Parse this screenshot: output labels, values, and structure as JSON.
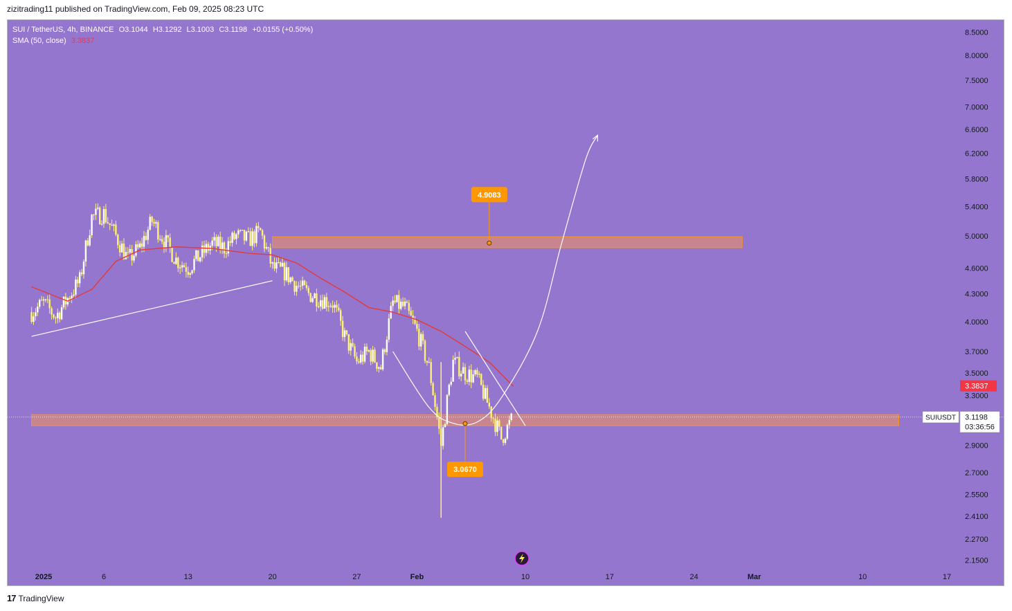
{
  "publish_info": "zizitrading11 published on TradingView.com, Feb 09, 2025 08:23 UTC",
  "legend": {
    "symbol": "SUI / TetherUS, 4h, BINANCE",
    "open": "O3.1044",
    "high": "H3.1292",
    "low": "L3.1003",
    "close": "C3.1198",
    "change": "+0.0155 (+0.50%)",
    "sma_label": "SMA (50, close)",
    "sma_value": "3.3837"
  },
  "footer": {
    "brand": "TradingView",
    "logo_mark": "17"
  },
  "colors": {
    "background": "#9576cf",
    "candle": "#fff176",
    "candle_highlight": "#ffffff",
    "sma": "#e53935",
    "zone_fill": "#d98a7a",
    "zone_border": "#ff9800",
    "callout": "#ff9800",
    "price_label_bg": "#f23645"
  },
  "chart_data": {
    "type": "candlestick",
    "scale": "log",
    "y_ticks": [
      "8.5000",
      "8.0000",
      "7.5000",
      "7.0000",
      "6.6000",
      "6.2000",
      "5.8000",
      "5.4000",
      "5.0000",
      "4.6000",
      "4.3000",
      "4.0000",
      "3.7000",
      "3.5000",
      "3.3000",
      "2.9000",
      "2.7000",
      "2.5500",
      "2.4100",
      "2.2700",
      "2.1500"
    ],
    "x_ticks": [
      {
        "label": "2025",
        "date": "2025-01-01",
        "bold": true
      },
      {
        "label": "6",
        "date": "2025-01-06"
      },
      {
        "label": "13",
        "date": "2025-01-13"
      },
      {
        "label": "20",
        "date": "2025-01-20"
      },
      {
        "label": "27",
        "date": "2025-01-27"
      },
      {
        "label": "Feb",
        "date": "2025-02-01",
        "bold": true
      },
      {
        "label": "10",
        "date": "2025-02-10"
      },
      {
        "label": "17",
        "date": "2025-02-17"
      },
      {
        "label": "24",
        "date": "2025-02-24"
      },
      {
        "label": "Mar",
        "date": "2025-03-01",
        "bold": true
      },
      {
        "label": "10",
        "date": "2025-03-10"
      },
      {
        "label": "17",
        "date": "2025-03-17"
      }
    ],
    "price_path": [
      [
        "2024-12-31",
        4.1
      ],
      [
        "2025-01-01",
        4.2
      ],
      [
        "2025-01-02",
        4.05
      ],
      [
        "2025-01-03",
        4.25
      ],
      [
        "2025-01-04",
        4.45
      ],
      [
        "2025-01-05",
        5.25
      ],
      [
        "2025-01-06",
        5.3
      ],
      [
        "2025-01-07",
        5.0
      ],
      [
        "2025-01-08",
        4.7
      ],
      [
        "2025-01-09",
        4.85
      ],
      [
        "2025-01-10",
        5.2
      ],
      [
        "2025-01-11",
        4.95
      ],
      [
        "2025-01-12",
        4.7
      ],
      [
        "2025-01-13",
        4.6
      ],
      [
        "2025-01-14",
        4.75
      ],
      [
        "2025-01-15",
        4.9
      ],
      [
        "2025-01-16",
        4.85
      ],
      [
        "2025-01-17",
        5.0
      ],
      [
        "2025-01-18",
        4.95
      ],
      [
        "2025-01-19",
        5.05
      ],
      [
        "2025-01-20",
        4.6
      ],
      [
        "2025-01-21",
        4.55
      ],
      [
        "2025-01-22",
        4.4
      ],
      [
        "2025-01-23",
        4.3
      ],
      [
        "2025-01-24",
        4.25
      ],
      [
        "2025-01-25",
        4.2
      ],
      [
        "2025-01-26",
        3.85
      ],
      [
        "2025-01-27",
        3.6
      ],
      [
        "2025-01-28",
        3.7
      ],
      [
        "2025-01-29",
        3.55
      ],
      [
        "2025-01-30",
        4.2
      ],
      [
        "2025-01-31",
        4.15
      ],
      [
        "2025-02-01",
        3.9
      ],
      [
        "2025-02-02",
        3.55
      ],
      [
        "2025-02-03",
        2.9
      ],
      [
        "2025-02-04",
        3.6
      ],
      [
        "2025-02-05",
        3.5
      ],
      [
        "2025-02-06",
        3.45
      ],
      [
        "2025-02-07",
        3.2
      ],
      [
        "2025-02-08",
        2.95
      ],
      [
        "2025-02-09",
        3.1198
      ]
    ],
    "candles_per_day": 6,
    "last_price": 3.1198,
    "sma": {
      "name": "SMA (50, close)",
      "last": 3.3837,
      "points": [
        [
          "2024-12-31",
          4.38
        ],
        [
          "2025-01-03",
          4.22
        ],
        [
          "2025-01-05",
          4.35
        ],
        [
          "2025-01-07",
          4.68
        ],
        [
          "2025-01-09",
          4.82
        ],
        [
          "2025-01-12",
          4.86
        ],
        [
          "2025-01-15",
          4.84
        ],
        [
          "2025-01-18",
          4.78
        ],
        [
          "2025-01-20",
          4.76
        ],
        [
          "2025-01-22",
          4.66
        ],
        [
          "2025-01-24",
          4.48
        ],
        [
          "2025-01-26",
          4.32
        ],
        [
          "2025-01-28",
          4.15
        ],
        [
          "2025-01-30",
          4.1
        ],
        [
          "2025-02-01",
          4.02
        ],
        [
          "2025-02-03",
          3.9
        ],
        [
          "2025-02-05",
          3.75
        ],
        [
          "2025-02-07",
          3.6
        ],
        [
          "2025-02-09",
          3.38
        ]
      ]
    },
    "drawings": {
      "resistance_zone": {
        "from": "2025-01-20",
        "to": "2025-02-28",
        "low": 4.85,
        "high": 4.99
      },
      "support_zone": {
        "from": "2024-12-31",
        "to": "2025-03-13",
        "low": 3.05,
        "high": 3.14
      },
      "rising_trendline": [
        [
          "2024-12-31",
          3.85
        ],
        [
          "2025-01-20",
          4.45
        ]
      ],
      "falling_trendline": [
        [
          "2025-02-05",
          3.9
        ],
        [
          "2025-02-10",
          3.05
        ]
      ],
      "arc_points": [
        [
          "2025-01-30",
          3.7
        ],
        [
          "2025-02-02",
          3.2
        ],
        [
          "2025-02-04",
          3.07
        ],
        [
          "2025-02-06",
          3.08
        ],
        [
          "2025-02-08",
          3.28
        ],
        [
          "2025-02-11",
          3.9
        ],
        [
          "2025-02-13",
          4.9
        ],
        [
          "2025-02-15",
          6.1
        ],
        [
          "2025-02-16",
          6.5
        ]
      ],
      "callouts": [
        {
          "label": "4.9083",
          "price": 4.9083,
          "anchor_date": "2025-02-07"
        },
        {
          "label": "3.0670",
          "price": 3.067,
          "anchor_date": "2025-02-05"
        }
      ]
    },
    "price_labels": {
      "sma": "3.3837",
      "symbol": "SUIUSDT",
      "last": "3.1198",
      "countdown": "03:36:56"
    }
  }
}
